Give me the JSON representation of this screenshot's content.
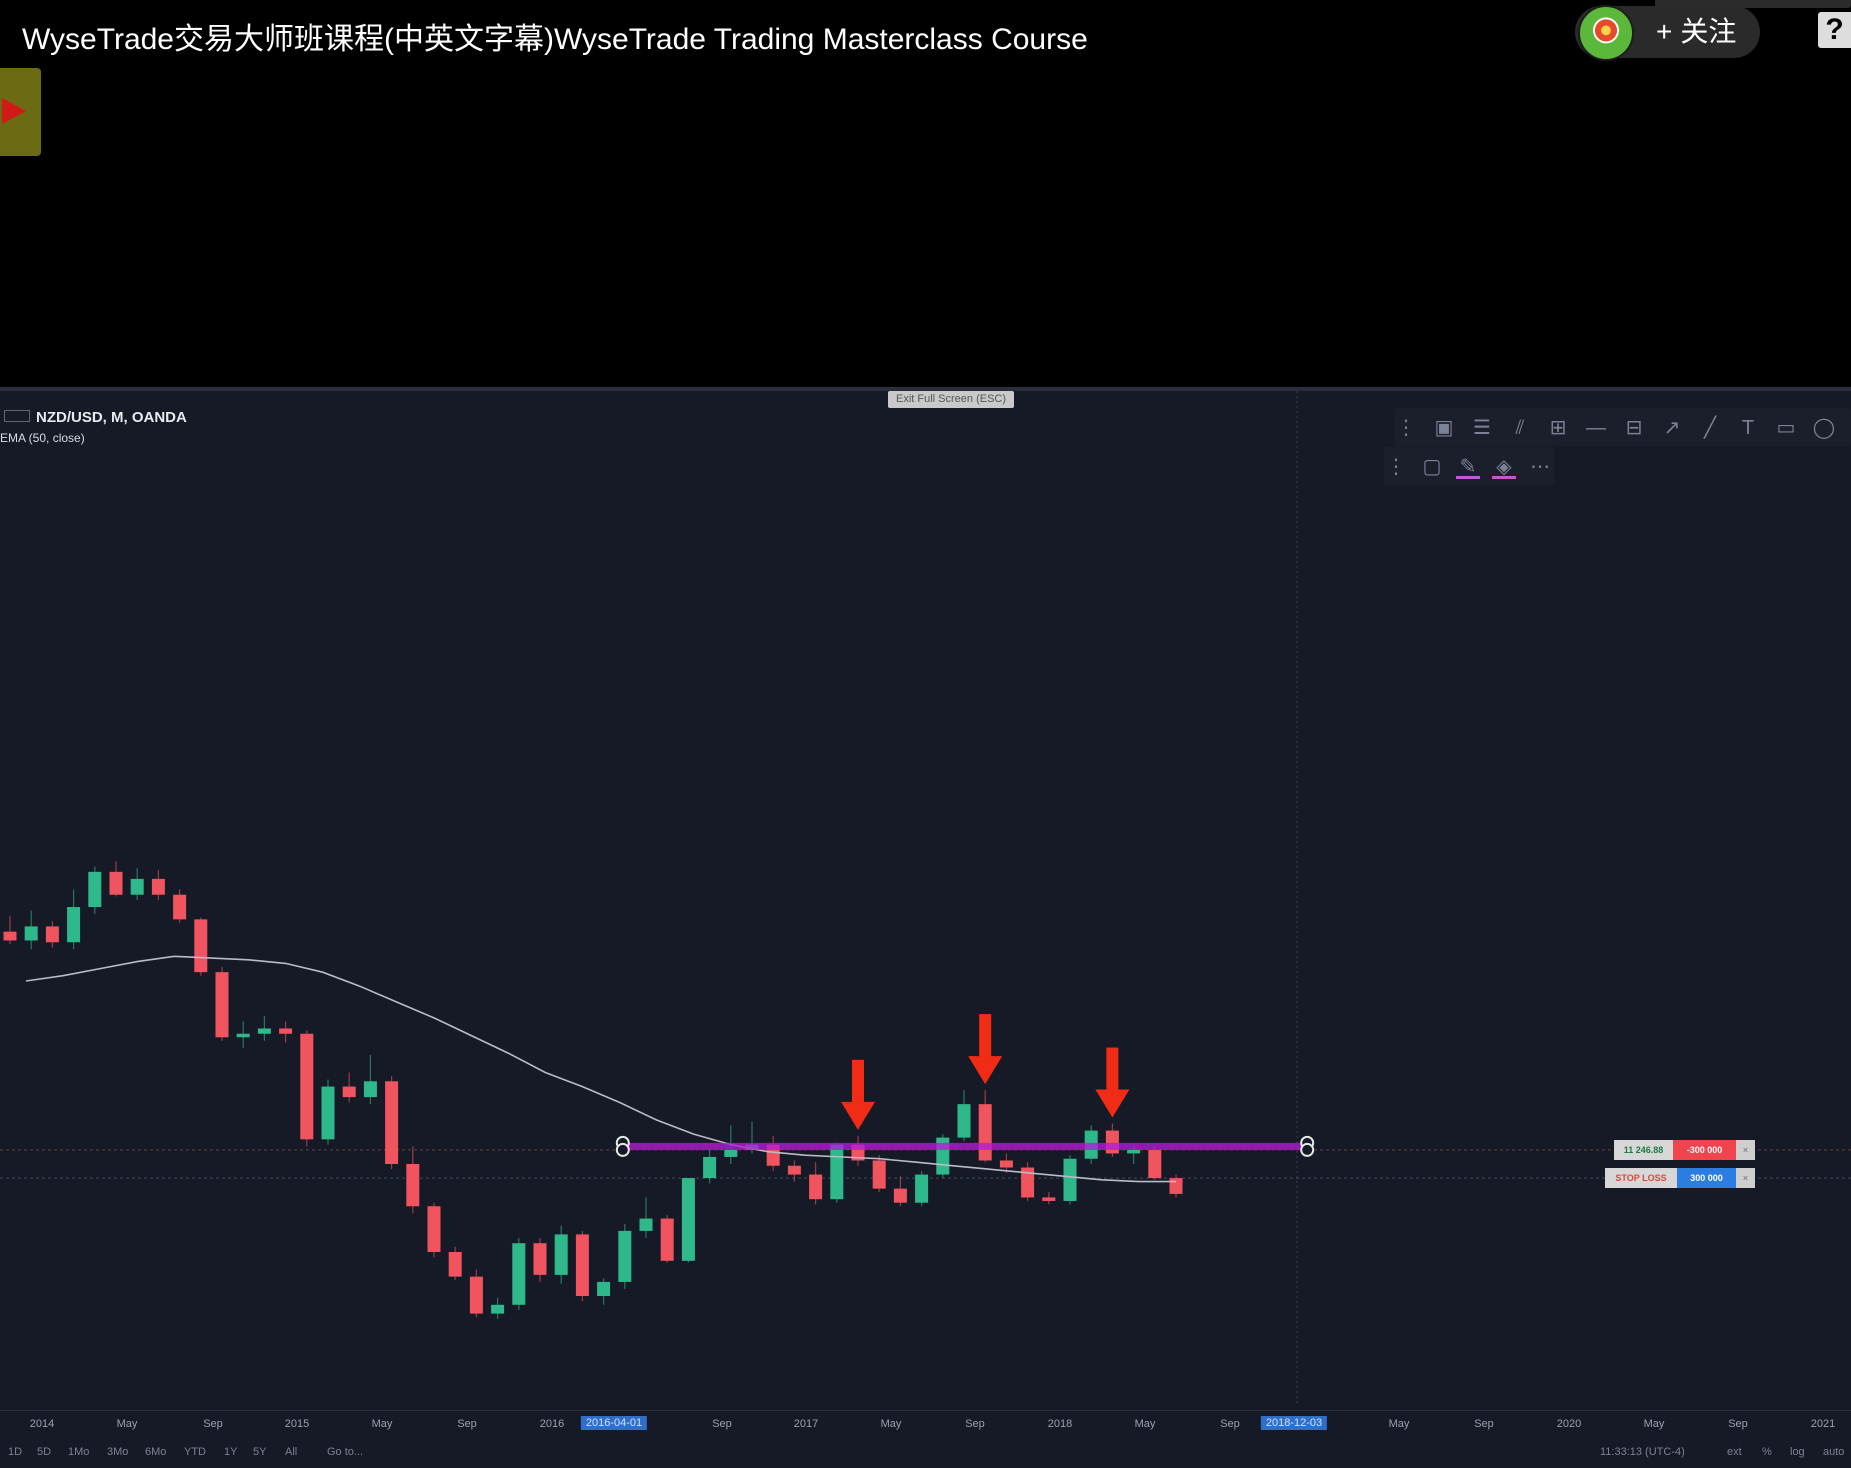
{
  "video": {
    "title": "WyseTrade交易大师班课程(中英文字幕)WyseTrade Trading Masterclass Course",
    "follow_label": "关注",
    "follow_plus": "+",
    "help_glyph": "?"
  },
  "chart": {
    "symbol": "NZD/USD, M, OANDA",
    "indicator": "EMA (50, close)",
    "exit_fullscreen": "Exit Full Screen (ESC)",
    "up_color": "#2fb98a",
    "down_color": "#f0545e",
    "zone_color": "#b21dd0",
    "arrow_color": "#f02b16",
    "ema_color": "#b9bcc6"
  },
  "chart_data": {
    "type": "candlestick",
    "symbol": "NZD/USD",
    "interval": "M",
    "source": "OANDA",
    "indicators": [
      "EMA (50, close)"
    ],
    "candles": [
      {
        "o": 0.832,
        "h": 0.841,
        "l": 0.825,
        "c": 0.827
      },
      {
        "o": 0.827,
        "h": 0.844,
        "l": 0.822,
        "c": 0.835
      },
      {
        "o": 0.835,
        "h": 0.838,
        "l": 0.823,
        "c": 0.826
      },
      {
        "o": 0.826,
        "h": 0.856,
        "l": 0.822,
        "c": 0.846
      },
      {
        "o": 0.846,
        "h": 0.869,
        "l": 0.842,
        "c": 0.866
      },
      {
        "o": 0.866,
        "h": 0.872,
        "l": 0.852,
        "c": 0.853
      },
      {
        "o": 0.853,
        "h": 0.868,
        "l": 0.85,
        "c": 0.862
      },
      {
        "o": 0.862,
        "h": 0.867,
        "l": 0.85,
        "c": 0.853
      },
      {
        "o": 0.853,
        "h": 0.856,
        "l": 0.837,
        "c": 0.839
      },
      {
        "o": 0.839,
        "h": 0.84,
        "l": 0.807,
        "c": 0.809
      },
      {
        "o": 0.809,
        "h": 0.812,
        "l": 0.77,
        "c": 0.772
      },
      {
        "o": 0.772,
        "h": 0.781,
        "l": 0.766,
        "c": 0.774
      },
      {
        "o": 0.774,
        "h": 0.784,
        "l": 0.77,
        "c": 0.777
      },
      {
        "o": 0.777,
        "h": 0.781,
        "l": 0.769,
        "c": 0.774
      },
      {
        "o": 0.774,
        "h": 0.776,
        "l": 0.71,
        "c": 0.714
      },
      {
        "o": 0.714,
        "h": 0.748,
        "l": 0.711,
        "c": 0.744
      },
      {
        "o": 0.744,
        "h": 0.752,
        "l": 0.735,
        "c": 0.738
      },
      {
        "o": 0.738,
        "h": 0.762,
        "l": 0.734,
        "c": 0.747
      },
      {
        "o": 0.747,
        "h": 0.75,
        "l": 0.697,
        "c": 0.7
      },
      {
        "o": 0.7,
        "h": 0.71,
        "l": 0.672,
        "c": 0.676
      },
      {
        "o": 0.676,
        "h": 0.678,
        "l": 0.647,
        "c": 0.65
      },
      {
        "o": 0.65,
        "h": 0.653,
        "l": 0.634,
        "c": 0.636
      },
      {
        "o": 0.636,
        "h": 0.64,
        "l": 0.613,
        "c": 0.615
      },
      {
        "o": 0.615,
        "h": 0.624,
        "l": 0.612,
        "c": 0.62
      },
      {
        "o": 0.62,
        "h": 0.658,
        "l": 0.617,
        "c": 0.655
      },
      {
        "o": 0.655,
        "h": 0.658,
        "l": 0.633,
        "c": 0.637
      },
      {
        "o": 0.637,
        "h": 0.665,
        "l": 0.632,
        "c": 0.66
      },
      {
        "o": 0.66,
        "h": 0.662,
        "l": 0.622,
        "c": 0.625
      },
      {
        "o": 0.625,
        "h": 0.635,
        "l": 0.62,
        "c": 0.633
      },
      {
        "o": 0.633,
        "h": 0.666,
        "l": 0.629,
        "c": 0.662
      },
      {
        "o": 0.662,
        "h": 0.681,
        "l": 0.658,
        "c": 0.669
      },
      {
        "o": 0.669,
        "h": 0.671,
        "l": 0.644,
        "c": 0.645
      },
      {
        "o": 0.645,
        "h": 0.692,
        "l": 0.644,
        "c": 0.692
      },
      {
        "o": 0.692,
        "h": 0.708,
        "l": 0.689,
        "c": 0.704
      },
      {
        "o": 0.704,
        "h": 0.722,
        "l": 0.7,
        "c": 0.708
      },
      {
        "o": 0.708,
        "h": 0.724,
        "l": 0.706,
        "c": 0.711
      },
      {
        "o": 0.711,
        "h": 0.716,
        "l": 0.696,
        "c": 0.699
      },
      {
        "o": 0.699,
        "h": 0.702,
        "l": 0.69,
        "c": 0.694
      },
      {
        "o": 0.694,
        "h": 0.701,
        "l": 0.677,
        "c": 0.68
      },
      {
        "o": 0.68,
        "h": 0.712,
        "l": 0.678,
        "c": 0.711
      },
      {
        "o": 0.711,
        "h": 0.716,
        "l": 0.699,
        "c": 0.702
      },
      {
        "o": 0.702,
        "h": 0.705,
        "l": 0.684,
        "c": 0.686
      },
      {
        "o": 0.686,
        "h": 0.693,
        "l": 0.676,
        "c": 0.678
      },
      {
        "o": 0.678,
        "h": 0.696,
        "l": 0.676,
        "c": 0.694
      },
      {
        "o": 0.694,
        "h": 0.717,
        "l": 0.692,
        "c": 0.715
      },
      {
        "o": 0.715,
        "h": 0.742,
        "l": 0.713,
        "c": 0.734
      },
      {
        "o": 0.734,
        "h": 0.742,
        "l": 0.701,
        "c": 0.702
      },
      {
        "o": 0.702,
        "h": 0.706,
        "l": 0.695,
        "c": 0.698
      },
      {
        "o": 0.698,
        "h": 0.701,
        "l": 0.679,
        "c": 0.681
      },
      {
        "o": 0.681,
        "h": 0.684,
        "l": 0.677,
        "c": 0.679
      },
      {
        "o": 0.679,
        "h": 0.705,
        "l": 0.677,
        "c": 0.703
      },
      {
        "o": 0.703,
        "h": 0.722,
        "l": 0.7,
        "c": 0.719
      },
      {
        "o": 0.719,
        "h": 0.723,
        "l": 0.704,
        "c": 0.706
      },
      {
        "o": 0.706,
        "h": 0.711,
        "l": 0.7,
        "c": 0.708
      },
      {
        "o": 0.708,
        "h": 0.71,
        "l": 0.691,
        "c": 0.692
      },
      {
        "o": 0.692,
        "h": 0.694,
        "l": 0.681,
        "c": 0.683
      }
    ],
    "ema_50": [
      0.804,
      0.807,
      0.811,
      0.815,
      0.818,
      0.817,
      0.816,
      0.814,
      0.809,
      0.801,
      0.792,
      0.783,
      0.773,
      0.763,
      0.752,
      0.744,
      0.735,
      0.725,
      0.717,
      0.711,
      0.707,
      0.705,
      0.704,
      0.703,
      0.701,
      0.699,
      0.697,
      0.695,
      0.693,
      0.691,
      0.69,
      0.69
    ],
    "ema_50_end_index": 55,
    "resistance_zone": {
      "top": 0.712,
      "bottom": 0.708,
      "from_index": 29,
      "to_index": 61
    },
    "rejection_arrows_at_index": [
      40,
      46,
      52
    ],
    "order_lines": [
      {
        "label": "11 246.88",
        "qty": "-300 000",
        "price": 0.708
      },
      {
        "label": "STOP LOSS",
        "qty": "300 000",
        "price": 0.692
      }
    ],
    "x_ticks": [
      "2014",
      "May",
      "Sep",
      "2015",
      "May",
      "Sep",
      "2016",
      "2016-04-01",
      "Sep",
      "2017",
      "May",
      "Sep",
      "2018",
      "May",
      "Sep",
      "2018-12-03",
      "May",
      "Sep",
      "2020",
      "May",
      "Sep",
      "2021"
    ],
    "y_range": [
      0.6,
      0.88
    ]
  },
  "time_axis": {
    "ticks": [
      {
        "label": "2014",
        "hl": false
      },
      {
        "label": "May",
        "hl": false
      },
      {
        "label": "Sep",
        "hl": false
      },
      {
        "label": "2015",
        "hl": false
      },
      {
        "label": "May",
        "hl": false
      },
      {
        "label": "Sep",
        "hl": false
      },
      {
        "label": "2016",
        "hl": false
      },
      {
        "label": "2016-04-01",
        "hl": true
      },
      {
        "label": "Sep",
        "hl": false
      },
      {
        "label": "2017",
        "hl": false
      },
      {
        "label": "May",
        "hl": false
      },
      {
        "label": "Sep",
        "hl": false
      },
      {
        "label": "2018",
        "hl": false
      },
      {
        "label": "May",
        "hl": false
      },
      {
        "label": "Sep",
        "hl": false
      },
      {
        "label": "2018-12-03",
        "hl": true
      },
      {
        "label": "May",
        "hl": false
      },
      {
        "label": "Sep",
        "hl": false
      },
      {
        "label": "2020",
        "hl": false
      },
      {
        "label": "May",
        "hl": false
      },
      {
        "label": "Sep",
        "hl": false
      },
      {
        "label": "2021",
        "hl": false
      }
    ]
  },
  "bottom_bar": {
    "ranges": [
      "1D",
      "5D",
      "1Mo",
      "3Mo",
      "6Mo",
      "YTD",
      "1Y",
      "5Y",
      "All",
      "Go to..."
    ],
    "clock": "11:33:13 (UTC-4)",
    "ext": "ext",
    "percent": "%",
    "log": "log",
    "auto": "auto"
  },
  "toolbars": {
    "drawing_tools": [
      "drag-handle-icon",
      "rectangle-select-icon",
      "parallel-lines-icon",
      "fib-fan-icon",
      "fib-retracement-icon",
      "horizontal-line-icon",
      "measure-icon",
      "ray-icon",
      "trend-line-icon",
      "text-icon",
      "callout-icon",
      "ellipse-icon"
    ],
    "style_tools": [
      "drag-handle-icon",
      "border-style-icon",
      "pencil-color-icon",
      "fill-color-icon",
      "line-style-icon"
    ]
  }
}
